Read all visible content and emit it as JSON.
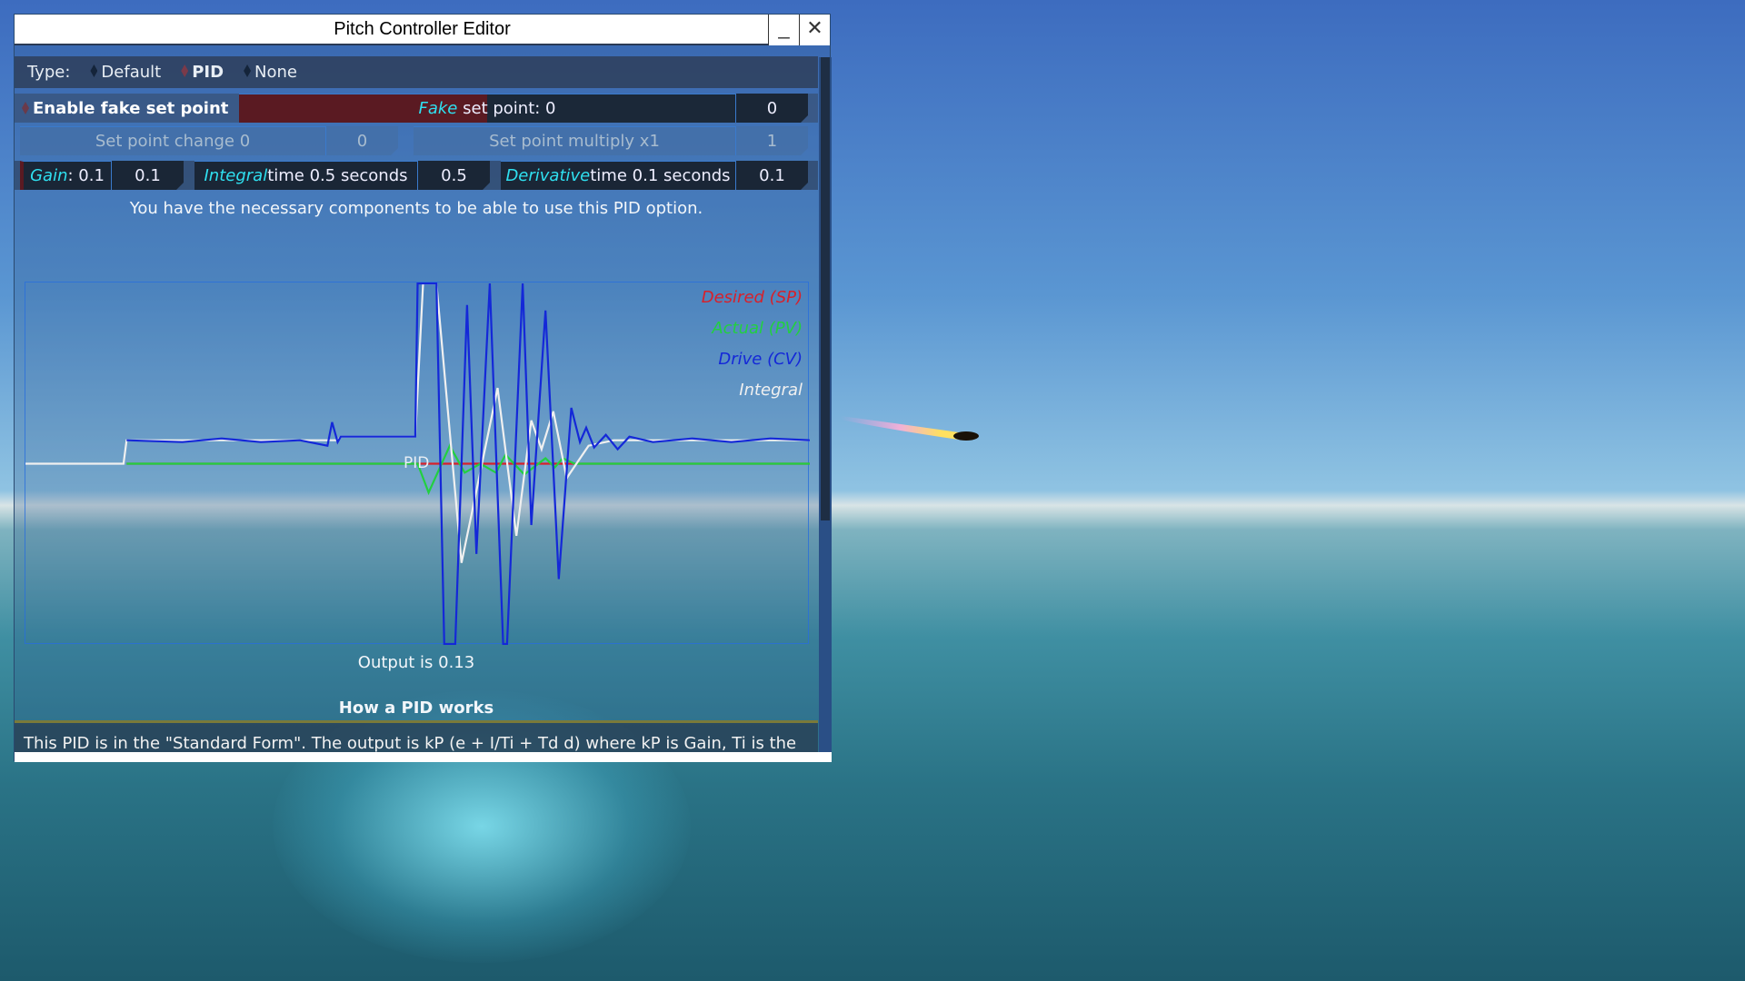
{
  "window": {
    "title": "Pitch Controller Editor",
    "minimize": "_",
    "close": "✕"
  },
  "type_row": {
    "label": "Type:",
    "options": [
      {
        "label": "Default",
        "selected": false
      },
      {
        "label": "PID",
        "selected": true
      },
      {
        "label": "None",
        "selected": false
      }
    ]
  },
  "fake_set_point": {
    "checkbox_label": "Enable fake set point",
    "slider_prefix": "Fake",
    "slider_suffix": "set point: 0",
    "slider_fill": 0.5,
    "value": "0"
  },
  "set_point_change": {
    "label": "Set point change 0",
    "value": "0"
  },
  "set_point_multiply": {
    "label": "Set point multiply x1",
    "value": "1"
  },
  "gain": {
    "prefix": "Gain",
    "suffix": ": 0.1",
    "value": "0.1"
  },
  "integral": {
    "prefix": "Integral",
    "suffix": " time 0.5 seconds",
    "value": "0.5"
  },
  "derivative": {
    "prefix": "Derivative",
    "suffix": " time 0.1 seconds",
    "value": "0.1"
  },
  "message": "You have the necessary components to be able to use this PID option.",
  "graph": {
    "center_label": "PID",
    "legend": [
      {
        "name": "Desired (SP)",
        "color": "#d8202a"
      },
      {
        "name": "Actual (PV)",
        "color": "#22d040"
      },
      {
        "name": "Drive (CV)",
        "color": "#1428d8"
      },
      {
        "name": "Integral",
        "color": "#f0f0f0"
      }
    ],
    "series": {
      "sp": [
        [
          0.129,
          0
        ],
        [
          1,
          0
        ]
      ],
      "pv": [
        [
          0.129,
          0
        ],
        [
          0.5,
          0
        ],
        [
          0.514,
          -0.16
        ],
        [
          0.541,
          0.1
        ],
        [
          0.56,
          -0.05
        ],
        [
          0.58,
          0
        ],
        [
          0.6,
          -0.05
        ],
        [
          0.612,
          0.05
        ],
        [
          0.636,
          -0.06
        ],
        [
          0.663,
          0.03
        ],
        [
          0.675,
          -0.02
        ],
        [
          0.685,
          0.03
        ],
        [
          0.7,
          0
        ],
        [
          1,
          0
        ]
      ],
      "cv": [
        [
          0.129,
          0.13
        ],
        [
          0.2,
          0.12
        ],
        [
          0.25,
          0.14
        ],
        [
          0.3,
          0.12
        ],
        [
          0.35,
          0.13
        ],
        [
          0.385,
          0.1
        ],
        [
          0.391,
          0.23
        ],
        [
          0.398,
          0.12
        ],
        [
          0.402,
          0.15
        ],
        [
          0.497,
          0.15
        ],
        [
          0.5,
          1
        ],
        [
          0.524,
          1
        ],
        [
          0.534,
          -1
        ],
        [
          0.548,
          -1
        ],
        [
          0.563,
          0.88
        ],
        [
          0.575,
          -0.5
        ],
        [
          0.592,
          1
        ],
        [
          0.609,
          -1
        ],
        [
          0.614,
          -1
        ],
        [
          0.634,
          1
        ],
        [
          0.645,
          -0.34
        ],
        [
          0.663,
          0.85
        ],
        [
          0.68,
          -0.64
        ],
        [
          0.696,
          0.31
        ],
        [
          0.707,
          0.12
        ],
        [
          0.715,
          0.2
        ],
        [
          0.725,
          0.09
        ],
        [
          0.74,
          0.16
        ],
        [
          0.755,
          0.08
        ],
        [
          0.77,
          0.15
        ],
        [
          0.8,
          0.12
        ],
        [
          0.85,
          0.14
        ],
        [
          0.9,
          0.12
        ],
        [
          0.95,
          0.14
        ],
        [
          1,
          0.13
        ]
      ],
      "integral": [
        [
          0,
          0
        ],
        [
          0.125,
          0
        ],
        [
          0.129,
          0.13
        ],
        [
          0.398,
          0.13
        ],
        [
          0.402,
          0.15
        ],
        [
          0.497,
          0.15
        ],
        [
          0.507,
          1
        ],
        [
          0.524,
          1
        ],
        [
          0.556,
          -0.55
        ],
        [
          0.602,
          0.42
        ],
        [
          0.626,
          -0.4
        ],
        [
          0.645,
          0.24
        ],
        [
          0.658,
          0.08
        ],
        [
          0.673,
          0.29
        ],
        [
          0.69,
          -0.08
        ],
        [
          0.718,
          0.1
        ],
        [
          0.75,
          0.13
        ],
        [
          1,
          0.13
        ]
      ]
    }
  },
  "output": "Output is 0.13",
  "how_title": "How a PID works",
  "how_text": "This PID is in the \"Standard Form\". The output is kP (e  +  I/Ti  +  Td d) where kP is Gain, Ti is the"
}
